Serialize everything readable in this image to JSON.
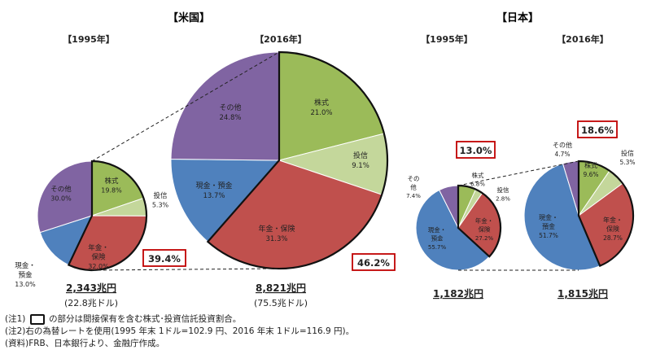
{
  "sections": {
    "us": "【米国】",
    "japan": "【日本】"
  },
  "chart_data": [
    {
      "type": "pie",
      "region": "米国",
      "title": "【1995年】",
      "total": "2,343兆円",
      "total_sub": "(22.8兆ドル)",
      "highlight": "39.4%",
      "slices": [
        {
          "label": "株式",
          "value": 19.8,
          "value_label": "19.8%",
          "color": "#9bbb59"
        },
        {
          "label": "投信",
          "value": 5.3,
          "value_label": "5.3%",
          "color": "#c4d79b"
        },
        {
          "label": "年金・保険",
          "value": 32.0,
          "value_label": "32.0%",
          "color": "#c0504d"
        },
        {
          "label": "現金・預金",
          "value": 13.0,
          "value_label": "13.0%",
          "color": "#4f81bd"
        },
        {
          "label": "その他",
          "value": 30.0,
          "value_label": "30.0%",
          "color": "#8064a2"
        }
      ]
    },
    {
      "type": "pie",
      "region": "米国",
      "title": "【2016年】",
      "total": "8,821兆円",
      "total_sub": "(75.5兆ドル)",
      "highlight": "46.2%",
      "slices": [
        {
          "label": "株式",
          "value": 21.0,
          "value_label": "21.0%",
          "color": "#9bbb59"
        },
        {
          "label": "投信",
          "value": 9.1,
          "value_label": "9.1%",
          "color": "#c4d79b"
        },
        {
          "label": "年金・保険",
          "value": 31.3,
          "value_label": "31.3%",
          "color": "#c0504d"
        },
        {
          "label": "現金・預金",
          "value": 13.7,
          "value_label": "13.7%",
          "color": "#4f81bd"
        },
        {
          "label": "その他",
          "value": 24.8,
          "value_label": "24.8%",
          "color": "#8064a2"
        }
      ]
    },
    {
      "type": "pie",
      "region": "日本",
      "title": "【1995年】",
      "total": "1,182兆円",
      "highlight": "13.0%",
      "slices": [
        {
          "label": "株式",
          "value": 6.8,
          "value_label": "6.8%",
          "color": "#9bbb59"
        },
        {
          "label": "投信",
          "value": 2.8,
          "value_label": "2.8%",
          "color": "#c4d79b"
        },
        {
          "label": "年金・保険",
          "value": 27.2,
          "value_label": "27.2%",
          "color": "#c0504d"
        },
        {
          "label": "現金・預金",
          "value": 55.7,
          "value_label": "55.7%",
          "color": "#4f81bd"
        },
        {
          "label": "その他",
          "value": 7.4,
          "value_label": "7.4%",
          "color": "#8064a2"
        }
      ]
    },
    {
      "type": "pie",
      "region": "日本",
      "title": "【2016年】",
      "total": "1,815兆円",
      "highlight": "18.6%",
      "slices": [
        {
          "label": "株式",
          "value": 9.6,
          "value_label": "9.6%",
          "color": "#9bbb59"
        },
        {
          "label": "投信",
          "value": 5.3,
          "value_label": "5.3%",
          "color": "#c4d79b"
        },
        {
          "label": "年金・保険",
          "value": 28.7,
          "value_label": "28.7%",
          "color": "#c0504d"
        },
        {
          "label": "現金・預金",
          "value": 51.7,
          "value_label": "51.7%",
          "color": "#4f81bd"
        },
        {
          "label": "その他",
          "value": 4.7,
          "value_label": "4.7%",
          "color": "#8064a2"
        }
      ]
    }
  ],
  "notes": {
    "note1_pre": "(注1)",
    "note1_post": "の部分は間接保有を含む株式･投資信託投資割合。",
    "note2": "(注2)右の為替レートを使用(1995 年末 1ドル=102.9 円、2016 年末 1ドル=116.9 円)。",
    "source": "(資料)FRB、日本銀行より、金融庁作成。"
  }
}
